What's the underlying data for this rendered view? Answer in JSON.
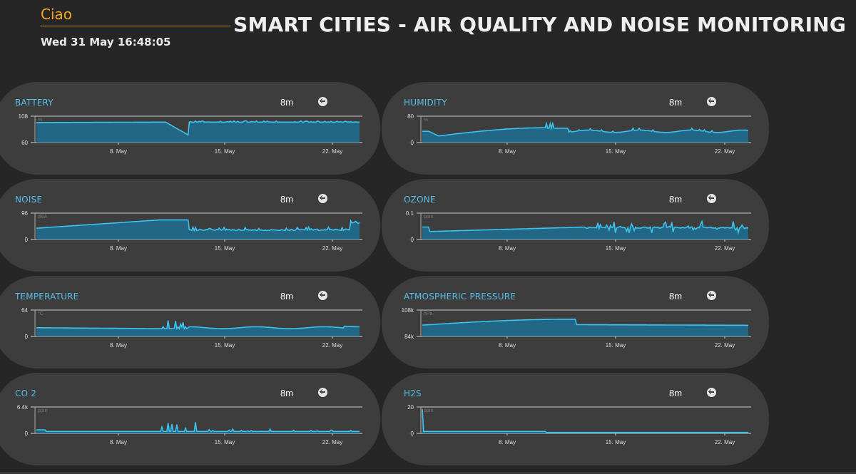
{
  "header": {
    "greeting": "Ciao",
    "datetime": "Wed 31 May 16:48:05",
    "title": "SMART CITIES - AIR QUALITY AND NOISE MONITORING"
  },
  "colors": {
    "accent": "#f5a623",
    "series": "#2fb0e0",
    "label": "#56bfe8",
    "card": "#3d3d3d"
  },
  "icons": {
    "back": "back-arrow-icon"
  },
  "x_ticks": [
    "8. May",
    "15. May",
    "22. May"
  ],
  "widgets": [
    {
      "label": "BATTERY",
      "range": "8m",
      "unit": "%",
      "y_top": "108",
      "y_bottom": "60"
    },
    {
      "label": "HUMIDITY",
      "range": "8m",
      "unit": "%",
      "y_top": "80",
      "y_bottom": "0"
    },
    {
      "label": "NOISE",
      "range": "8m",
      "unit": "dBA",
      "y_top": "96",
      "y_bottom": "0"
    },
    {
      "label": "OZONE",
      "range": "8m",
      "unit": "ppm",
      "y_top": "0.1",
      "y_bottom": "0"
    },
    {
      "label": "TEMPERATURE",
      "range": "8m",
      "unit": "°C",
      "y_top": "64",
      "y_bottom": "0"
    },
    {
      "label": "ATMOSPHERIC PRESSURE",
      "range": "8m",
      "unit": "hPa",
      "y_top": "108k",
      "y_bottom": "84k"
    },
    {
      "label": "CO 2",
      "range": "8m",
      "unit": "ppm",
      "y_top": "6.4k",
      "y_bottom": "0"
    },
    {
      "label": "H2S",
      "range": "8m",
      "unit": "ppm",
      "y_top": "20",
      "y_bottom": "0"
    }
  ]
}
